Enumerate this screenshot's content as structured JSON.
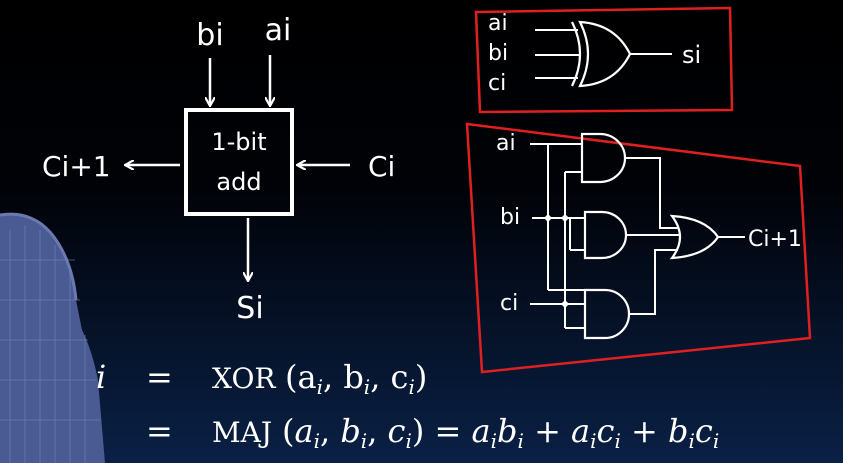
{
  "adder_block": {
    "label_line1": "1-bit",
    "label_line2": "add",
    "input_b": "bi",
    "input_a": "ai",
    "carry_in": "Ci",
    "carry_out": "Ci+1",
    "sum_out": "Si"
  },
  "xor_circuit": {
    "input_a": "ai",
    "input_b": "bi",
    "input_c": "ci",
    "output": "si",
    "border_color": "#e02020"
  },
  "majority_circuit": {
    "input_a": "ai",
    "input_b": "bi",
    "input_c": "ci",
    "output": "Ci+1",
    "border_color": "#e02020"
  },
  "equations": {
    "line1_lhs": "i",
    "line1_eq": "=",
    "line1_fn": "XOR",
    "line1_args": "(a",
    "line1_rest": ", b",
    "line1_rest2": ", c",
    "line1_end": ")",
    "line2_eq": "=",
    "line2_fn": "MAJ"
  },
  "colors": {
    "ink": "#ffffff",
    "highlight": "#e02020"
  }
}
